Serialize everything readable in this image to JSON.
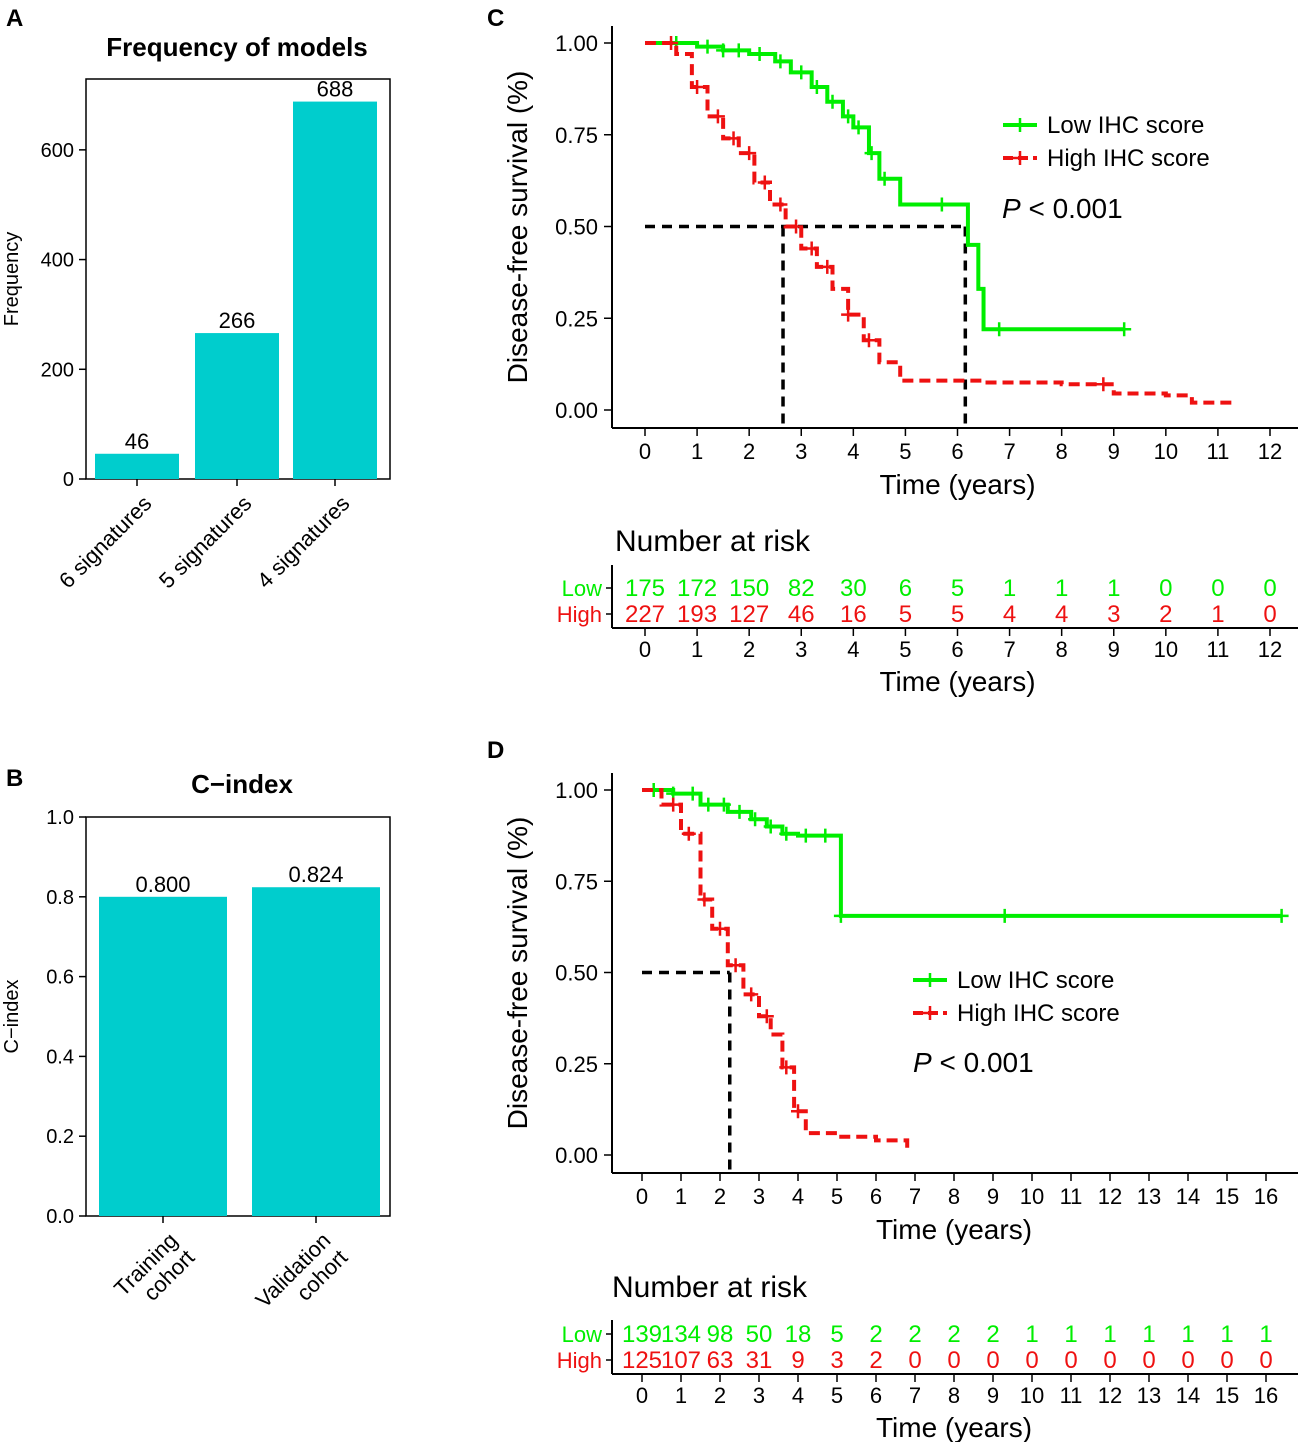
{
  "colors": {
    "low": "#00ee00",
    "high": "#ee1111",
    "bar": "#00cdcd",
    "axis": "#000000"
  },
  "chart_data": [
    {
      "panel": "A",
      "type": "bar",
      "title": "Frequency of models",
      "ylabel": "Frequency",
      "xlabel": "",
      "categories": [
        "6 signatures",
        "5 signatures",
        "4 signatures"
      ],
      "values": [
        46,
        266,
        688
      ],
      "value_labels": [
        "46",
        "266",
        "688"
      ],
      "ylim": [
        0,
        700
      ],
      "yticks": [
        0,
        200,
        400,
        600
      ],
      "ytick_labels": [
        "0",
        "200",
        "400",
        "600"
      ]
    },
    {
      "panel": "B",
      "type": "bar",
      "title": "C−index",
      "ylabel": "C−index",
      "xlabel": "",
      "categories": [
        [
          "Training",
          "cohort"
        ],
        [
          "Validation",
          "cohort"
        ]
      ],
      "values": [
        0.8,
        0.824
      ],
      "value_labels": [
        "0.800",
        "0.824"
      ],
      "ylim": [
        0,
        1.0
      ],
      "yticks": [
        0,
        0.2,
        0.4,
        0.6,
        0.8,
        1.0
      ],
      "ytick_labels": [
        "0.0",
        "0.2",
        "0.4",
        "0.6",
        "0.8",
        "1.0"
      ]
    },
    {
      "panel": "C",
      "type": "line",
      "subtype": "kaplan-meier",
      "xlabel": "Time (years)",
      "ylabel": "Disease-free survival (%)",
      "xlim": [
        0,
        12
      ],
      "ylim": [
        0,
        1
      ],
      "xticks": [
        "0",
        "1",
        "2",
        "3",
        "4",
        "5",
        "6",
        "7",
        "8",
        "9",
        "10",
        "11",
        "12"
      ],
      "yticks": [
        "0.00",
        "0.25",
        "0.50",
        "0.75",
        "1.00"
      ],
      "legend": [
        "Low IHC score",
        "High IHC score"
      ],
      "pvalue": {
        "p": "P",
        "rest": " < 0.001"
      },
      "series": [
        {
          "name": "Low IHC score",
          "x": [
            0,
            0.6,
            1.0,
            1.5,
            2.0,
            2.5,
            2.8,
            3.2,
            3.5,
            3.8,
            4.0,
            4.3,
            4.5,
            4.9,
            5.5,
            6.2,
            6.4,
            6.5,
            9.2
          ],
          "y": [
            1.0,
            1.0,
            0.99,
            0.98,
            0.97,
            0.95,
            0.92,
            0.88,
            0.84,
            0.8,
            0.77,
            0.7,
            0.63,
            0.56,
            0.56,
            0.45,
            0.33,
            0.22,
            0.22
          ],
          "censor_x": [
            0.6,
            1.2,
            1.5,
            1.8,
            2.2,
            2.6,
            3.0,
            3.3,
            3.6,
            3.9,
            4.1,
            4.35,
            4.6,
            5.7,
            6.8,
            9.2
          ]
        },
        {
          "name": "High IHC score",
          "x": [
            0,
            0.3,
            0.6,
            0.9,
            1.2,
            1.5,
            1.8,
            2.1,
            2.4,
            2.7,
            3.0,
            3.3,
            3.6,
            3.9,
            4.2,
            4.5,
            4.9,
            5.5,
            6.5,
            8.0,
            8.8,
            9.0,
            10.0,
            10.5,
            11.3
          ],
          "y": [
            1.0,
            1.0,
            0.97,
            0.88,
            0.8,
            0.74,
            0.7,
            0.62,
            0.56,
            0.5,
            0.44,
            0.39,
            0.33,
            0.26,
            0.19,
            0.13,
            0.08,
            0.08,
            0.075,
            0.07,
            0.07,
            0.045,
            0.04,
            0.02,
            0.02
          ],
          "censor_x": [
            0.5,
            1.0,
            1.4,
            1.7,
            2.0,
            2.3,
            2.6,
            2.9,
            3.2,
            3.5,
            3.9,
            4.3,
            8.8
          ]
        }
      ],
      "median_lines": [
        2.65,
        6.15
      ],
      "risk_table": {
        "title": "Number at risk",
        "rows": [
          {
            "label": "Low",
            "values": [
              "175",
              "172",
              "150",
              "82",
              "30",
              "6",
              "5",
              "1",
              "1",
              "1",
              "0",
              "0",
              "0"
            ]
          },
          {
            "label": "High",
            "values": [
              "227",
              "193",
              "127",
              "46",
              "16",
              "5",
              "5",
              "4",
              "4",
              "3",
              "2",
              "1",
              "0"
            ]
          }
        ]
      }
    },
    {
      "panel": "D",
      "type": "line",
      "subtype": "kaplan-meier",
      "xlabel": "Time (years)",
      "ylabel": "Disease-free survival (%)",
      "xlim": [
        0,
        16
      ],
      "ylim": [
        0,
        1
      ],
      "xticks": [
        "0",
        "1",
        "2",
        "3",
        "4",
        "5",
        "6",
        "7",
        "8",
        "9",
        "10",
        "11",
        "12",
        "13",
        "14",
        "15",
        "16"
      ],
      "yticks": [
        "0.00",
        "0.25",
        "0.50",
        "0.75",
        "1.00"
      ],
      "legend": [
        "Low IHC score",
        "High IHC score"
      ],
      "pvalue": {
        "p": "P",
        "rest": " < 0.001"
      },
      "series": [
        {
          "name": "Low IHC score",
          "x": [
            0,
            0.3,
            0.8,
            1.5,
            2.2,
            2.8,
            3.2,
            3.6,
            4.0,
            5.1,
            5.1,
            16.4
          ],
          "y": [
            1.0,
            1.0,
            0.99,
            0.96,
            0.94,
            0.92,
            0.9,
            0.88,
            0.875,
            0.875,
            0.655,
            0.655
          ],
          "censor_x": [
            0.3,
            0.8,
            1.3,
            1.7,
            2.1,
            2.5,
            2.9,
            3.3,
            3.7,
            4.2,
            4.7,
            5.1,
            9.3,
            16.4
          ]
        },
        {
          "name": "High IHC score",
          "x": [
            0,
            0.5,
            1.0,
            1.5,
            1.8,
            2.2,
            2.6,
            3.0,
            3.3,
            3.6,
            3.9,
            4.2,
            5.0,
            6.0,
            6.8
          ],
          "y": [
            1.0,
            0.96,
            0.88,
            0.7,
            0.62,
            0.52,
            0.44,
            0.38,
            0.33,
            0.24,
            0.12,
            0.06,
            0.05,
            0.04,
            0.01
          ],
          "censor_x": [
            0.8,
            1.2,
            1.6,
            2.0,
            2.4,
            2.8,
            3.2,
            3.7,
            4.0
          ]
        }
      ],
      "median_lines": [
        2.25
      ],
      "risk_table": {
        "title": "Number at risk",
        "rows": [
          {
            "label": "Low",
            "values": [
              "139",
              "134",
              "98",
              "50",
              "18",
              "5",
              "2",
              "2",
              "2",
              "2",
              "1",
              "1",
              "1",
              "1",
              "1",
              "1",
              "1"
            ]
          },
          {
            "label": "High",
            "values": [
              "125",
              "107",
              "63",
              "31",
              "9",
              "3",
              "2",
              "0",
              "0",
              "0",
              "0",
              "0",
              "0",
              "0",
              "0",
              "0",
              "0"
            ]
          }
        ]
      }
    }
  ],
  "panel_labels": [
    "A",
    "B",
    "C",
    "D"
  ]
}
